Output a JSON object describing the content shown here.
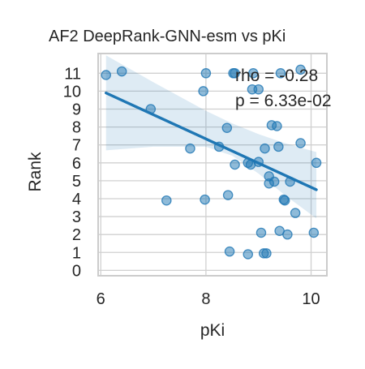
{
  "chart_data": {
    "type": "scatter",
    "title": "AF2 DeepRank-GNN-esm vs pKi",
    "xlabel": "pKi",
    "ylabel": "Rank",
    "xlim": [
      5.95,
      10.3
    ],
    "ylim": [
      -0.3,
      12.1
    ],
    "x_ticks": [
      6,
      8,
      10
    ],
    "x_tick_labels": [
      "6",
      "8",
      "10"
    ],
    "y_ticks": [
      0,
      1,
      2,
      3,
      4,
      5,
      6,
      7,
      8,
      9,
      10,
      11
    ],
    "y_tick_labels": [
      "0",
      "1",
      "2",
      "3",
      "4",
      "5",
      "6",
      "7",
      "8",
      "9",
      "10",
      "11"
    ],
    "grid": true,
    "annotations": [
      "rho = -0.28",
      "p = 6.33e-02"
    ],
    "colors": {
      "points": "#1f77b4",
      "line": "#1f77b4",
      "band": "#1f77b4",
      "grid": "#d0d0d0",
      "spine": "#cccccc"
    },
    "series": [
      {
        "points": [
          [
            6.1,
            10.9
          ],
          [
            6.4,
            11.1
          ],
          [
            6.95,
            9.0
          ],
          [
            7.25,
            3.9
          ],
          [
            7.7,
            6.8
          ],
          [
            7.95,
            10.0
          ],
          [
            8.0,
            11.0
          ],
          [
            7.98,
            3.95
          ],
          [
            8.25,
            6.9
          ],
          [
            8.4,
            7.95
          ],
          [
            8.42,
            4.2
          ],
          [
            8.45,
            1.05
          ],
          [
            8.52,
            11.0
          ],
          [
            8.55,
            11.0
          ],
          [
            8.55,
            5.9
          ],
          [
            8.8,
            6.0
          ],
          [
            8.85,
            5.9
          ],
          [
            8.8,
            0.9
          ],
          [
            8.88,
            10.1
          ],
          [
            8.9,
            11.0
          ],
          [
            9.0,
            10.1
          ],
          [
            9.0,
            6.05
          ],
          [
            9.05,
            2.1
          ],
          [
            9.1,
            0.95
          ],
          [
            9.12,
            6.8
          ],
          [
            9.15,
            0.95
          ],
          [
            9.2,
            5.25
          ],
          [
            9.2,
            4.85
          ],
          [
            9.25,
            8.1
          ],
          [
            9.3,
            4.95
          ],
          [
            9.35,
            8.05
          ],
          [
            9.38,
            6.9
          ],
          [
            9.4,
            2.2
          ],
          [
            9.42,
            11.0
          ],
          [
            9.48,
            3.95
          ],
          [
            9.5,
            3.9
          ],
          [
            9.55,
            2.0
          ],
          [
            9.6,
            4.95
          ],
          [
            9.7,
            3.2
          ],
          [
            9.8,
            7.1
          ],
          [
            9.8,
            11.2
          ],
          [
            10.05,
            2.1
          ],
          [
            10.1,
            6.0
          ]
        ],
        "fit": {
          "x_start": 6.1,
          "y_start": 9.9,
          "x_end": 10.1,
          "y_end": 4.5
        },
        "band_upper": [
          [
            6.1,
            12.0
          ],
          [
            7.0,
            10.5
          ],
          [
            8.0,
            8.9
          ],
          [
            8.5,
            8.2
          ],
          [
            9.0,
            7.6
          ],
          [
            9.5,
            7.1
          ],
          [
            10.1,
            6.6
          ]
        ],
        "band_lower": [
          [
            6.1,
            6.7
          ],
          [
            7.0,
            6.9
          ],
          [
            8.0,
            6.9
          ],
          [
            8.5,
            6.4
          ],
          [
            9.0,
            5.4
          ],
          [
            9.5,
            4.2
          ],
          [
            10.1,
            2.9
          ]
        ]
      }
    ]
  }
}
